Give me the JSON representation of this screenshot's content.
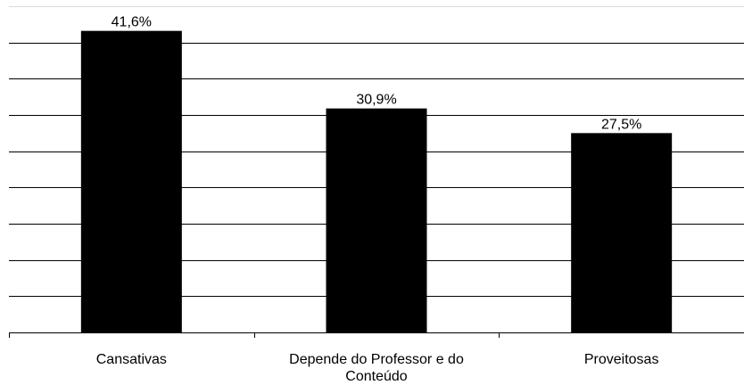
{
  "chart_data": {
    "type": "bar",
    "categories": [
      [
        "Cansativas"
      ],
      [
        "Depende do Professor e do",
        "Conteúdo"
      ],
      [
        "Proveitosas"
      ]
    ],
    "values": [
      41.6,
      30.9,
      27.5
    ],
    "data_labels": [
      "41,6%",
      "30,9%",
      "27,5%"
    ],
    "ylim": [
      0,
      45
    ],
    "gridlines_y": [
      5,
      10,
      15,
      20,
      25,
      30,
      35,
      40,
      45
    ],
    "grid": true,
    "legend": "none",
    "bar_color": "#000000",
    "grid_color": "#000000",
    "axis_color": "#000000"
  }
}
